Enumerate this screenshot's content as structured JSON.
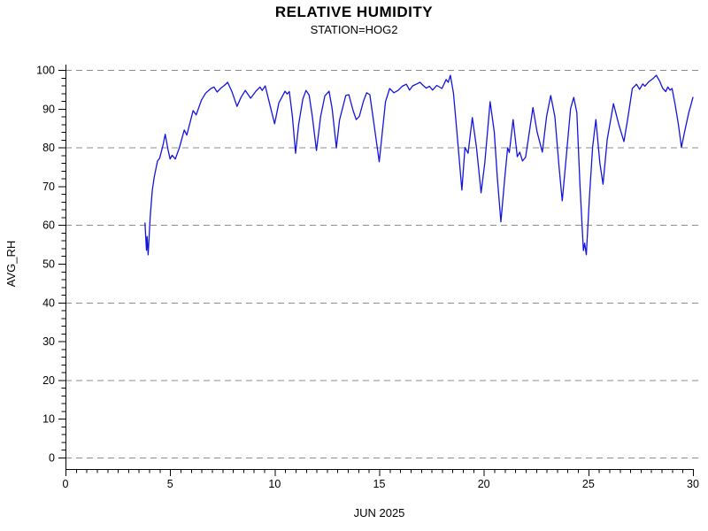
{
  "header": {
    "title": "RELATIVE HUMIDITY",
    "subtitle": "STATION=HOG2"
  },
  "chart_data": {
    "type": "line",
    "title": "RELATIVE HUMIDITY",
    "subtitle": "STATION=HOG2",
    "xlabel": "JUN 2025",
    "ylabel": "AVG_RH",
    "xlim": [
      0,
      30
    ],
    "ylim": [
      0,
      100
    ],
    "xticks": [
      0,
      5,
      10,
      15,
      20,
      25,
      30
    ],
    "yticks": [
      0,
      10,
      20,
      30,
      40,
      50,
      60,
      70,
      80,
      90,
      100
    ],
    "x_minor_step": 0.5,
    "y_minor_step": 2,
    "grid_values": [
      0,
      20,
      40,
      60,
      80,
      100
    ],
    "grid_on": true,
    "grid_style": "dashed",
    "legend": "none",
    "colors": {
      "line": "#1414dc",
      "grid": "#8c8c8c",
      "axis": "#000000",
      "background": "#ffffff"
    },
    "series": [
      {
        "name": "AVG_RH",
        "points": [
          [
            3.8,
            60.5
          ],
          [
            3.87,
            53.5
          ],
          [
            3.9,
            57
          ],
          [
            3.95,
            52.3
          ],
          [
            4.05,
            62
          ],
          [
            4.15,
            69
          ],
          [
            4.25,
            72.5
          ],
          [
            4.4,
            76.5
          ],
          [
            4.5,
            77.2
          ],
          [
            4.65,
            80.3
          ],
          [
            4.77,
            83.4
          ],
          [
            4.9,
            79.5
          ],
          [
            5.0,
            77
          ],
          [
            5.1,
            78
          ],
          [
            5.25,
            77
          ],
          [
            5.45,
            80
          ],
          [
            5.68,
            84.5
          ],
          [
            5.8,
            83.2
          ],
          [
            6.1,
            89.5
          ],
          [
            6.25,
            88.4
          ],
          [
            6.5,
            92.2
          ],
          [
            6.7,
            94
          ],
          [
            6.95,
            95.2
          ],
          [
            7.1,
            95.6
          ],
          [
            7.25,
            94.3
          ],
          [
            7.45,
            95.4
          ],
          [
            7.6,
            96
          ],
          [
            7.75,
            96.8
          ],
          [
            7.95,
            94.5
          ],
          [
            8.2,
            90.6
          ],
          [
            8.4,
            93
          ],
          [
            8.6,
            94.7
          ],
          [
            8.85,
            92.7
          ],
          [
            9.1,
            94.5
          ],
          [
            9.3,
            95.6
          ],
          [
            9.4,
            94.7
          ],
          [
            9.55,
            95.9
          ],
          [
            9.75,
            91.5
          ],
          [
            10.0,
            86.1
          ],
          [
            10.2,
            91.5
          ],
          [
            10.5,
            94.5
          ],
          [
            10.6,
            93.8
          ],
          [
            10.7,
            94.4
          ],
          [
            10.85,
            88
          ],
          [
            11.0,
            78.5
          ],
          [
            11.15,
            86
          ],
          [
            11.35,
            92.5
          ],
          [
            11.5,
            94.7
          ],
          [
            11.65,
            93.5
          ],
          [
            11.8,
            88
          ],
          [
            12.0,
            79.2
          ],
          [
            12.2,
            88
          ],
          [
            12.4,
            93.3
          ],
          [
            12.6,
            94.5
          ],
          [
            12.75,
            90
          ],
          [
            12.95,
            79.9
          ],
          [
            13.1,
            87
          ],
          [
            13.4,
            93.4
          ],
          [
            13.55,
            93.6
          ],
          [
            13.75,
            89.5
          ],
          [
            13.9,
            87.2
          ],
          [
            14.05,
            88
          ],
          [
            14.25,
            92
          ],
          [
            14.4,
            94.1
          ],
          [
            14.55,
            93.6
          ],
          [
            14.75,
            86
          ],
          [
            15.0,
            76.3
          ],
          [
            15.3,
            91.8
          ],
          [
            15.5,
            95.2
          ],
          [
            15.7,
            94.1
          ],
          [
            15.9,
            94.7
          ],
          [
            16.1,
            95.8
          ],
          [
            16.3,
            96.3
          ],
          [
            16.45,
            94.8
          ],
          [
            16.6,
            95.9
          ],
          [
            16.8,
            96.4
          ],
          [
            16.95,
            96.8
          ],
          [
            17.1,
            96
          ],
          [
            17.25,
            95.3
          ],
          [
            17.4,
            95.8
          ],
          [
            17.55,
            94.8
          ],
          [
            17.75,
            96
          ],
          [
            18.0,
            95.2
          ],
          [
            18.2,
            97.5
          ],
          [
            18.3,
            96.8
          ],
          [
            18.4,
            98.6
          ],
          [
            18.55,
            94
          ],
          [
            18.7,
            85
          ],
          [
            18.95,
            69
          ],
          [
            19.1,
            80
          ],
          [
            19.25,
            78.5
          ],
          [
            19.45,
            87.7
          ],
          [
            19.65,
            80
          ],
          [
            19.87,
            68.3
          ],
          [
            20.05,
            76
          ],
          [
            20.3,
            91.8
          ],
          [
            20.5,
            84
          ],
          [
            20.65,
            72
          ],
          [
            20.82,
            60.8
          ],
          [
            21.0,
            72
          ],
          [
            21.14,
            79.9
          ],
          [
            21.22,
            78.7
          ],
          [
            21.4,
            87.2
          ],
          [
            21.6,
            77.6
          ],
          [
            21.72,
            78.8
          ],
          [
            21.85,
            76.5
          ],
          [
            22.0,
            77.5
          ],
          [
            22.15,
            83
          ],
          [
            22.35,
            90.3
          ],
          [
            22.55,
            84
          ],
          [
            22.8,
            78.8
          ],
          [
            23.0,
            88
          ],
          [
            23.2,
            93.4
          ],
          [
            23.4,
            87.9
          ],
          [
            23.6,
            75
          ],
          [
            23.75,
            66.2
          ],
          [
            23.95,
            78
          ],
          [
            24.15,
            90
          ],
          [
            24.3,
            92.9
          ],
          [
            24.45,
            89
          ],
          [
            24.6,
            70
          ],
          [
            24.76,
            53.4
          ],
          [
            24.82,
            55.3
          ],
          [
            24.9,
            52.3
          ],
          [
            25.05,
            67
          ],
          [
            25.2,
            80
          ],
          [
            25.36,
            87.2
          ],
          [
            25.55,
            76
          ],
          [
            25.7,
            70.5
          ],
          [
            25.9,
            82
          ],
          [
            26.2,
            91.3
          ],
          [
            26.45,
            86
          ],
          [
            26.7,
            81.5
          ],
          [
            26.9,
            88
          ],
          [
            27.1,
            95.2
          ],
          [
            27.3,
            96.3
          ],
          [
            27.45,
            95
          ],
          [
            27.6,
            96.4
          ],
          [
            27.7,
            95.8
          ],
          [
            27.9,
            97
          ],
          [
            28.1,
            97.8
          ],
          [
            28.25,
            98.6
          ],
          [
            28.4,
            97.2
          ],
          [
            28.55,
            95.3
          ],
          [
            28.7,
            94.4
          ],
          [
            28.8,
            95.6
          ],
          [
            28.9,
            94.8
          ],
          [
            29.0,
            95.2
          ],
          [
            29.15,
            91
          ],
          [
            29.3,
            86
          ],
          [
            29.45,
            80
          ],
          [
            29.6,
            84
          ],
          [
            29.8,
            89
          ],
          [
            30.0,
            92.9
          ]
        ]
      }
    ]
  }
}
